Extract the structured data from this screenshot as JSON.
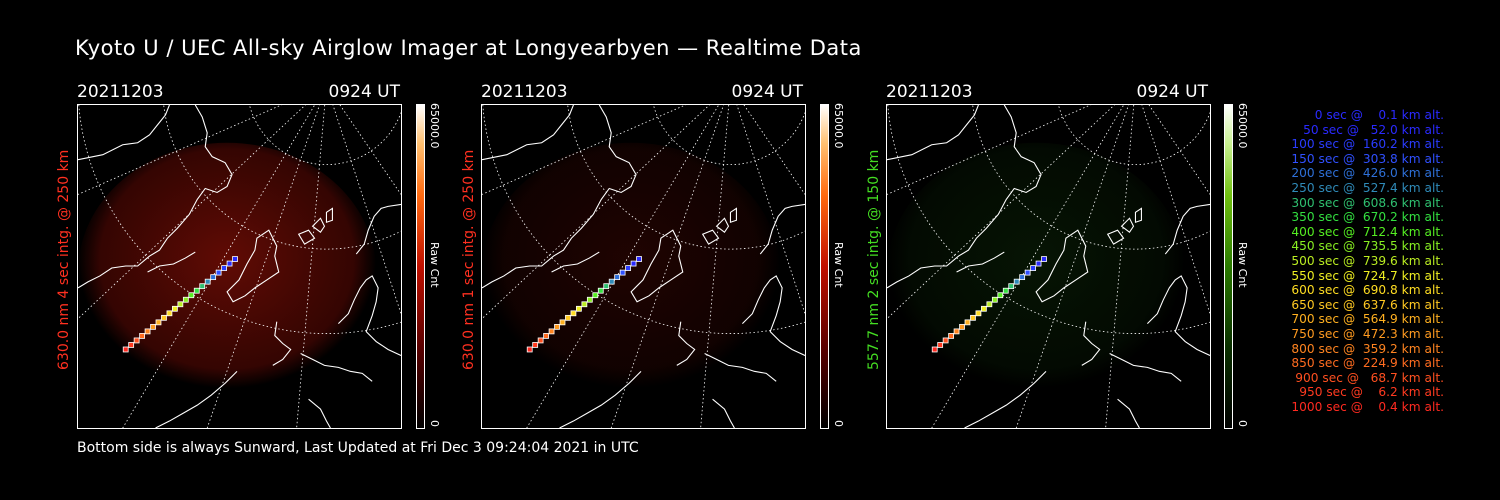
{
  "title": "Kyoto U / UEC All-sky Airglow Imager at Longyearbyen — Realtime Data",
  "footer": "Bottom side is always Sunward, Last Updated at Fri Dec  3 09:24:04 2021 in UTC",
  "colors": {
    "red_emission": "#ff2a10",
    "green_emission": "#44dd22"
  },
  "chart_data": [
    {
      "type": "heatmap",
      "date": "20211203",
      "time": "0924 UT",
      "side_label": "630.0 nm 4 sec intg. @ 250 km",
      "colorbar_max": "65000.0",
      "colorbar_label": "Raw Cnt",
      "colorbar_min": "0",
      "colormap": "black-red-orange-white",
      "airglow_intensity": 0.55
    },
    {
      "type": "heatmap",
      "date": "20211203",
      "time": "0924 UT",
      "side_label": "630.0 nm 1 sec intg. @ 250 km",
      "colorbar_max": "65000.0",
      "colorbar_label": "Raw Cnt",
      "colorbar_min": "0",
      "colormap": "black-red-orange-white",
      "airglow_intensity": 0.18
    },
    {
      "type": "heatmap",
      "date": "20211203",
      "time": "0924 UT",
      "side_label": "557.7 nm 2 sec intg. @ 150 km",
      "colorbar_max": "65000.0",
      "colorbar_label": "Raw Cnt",
      "colorbar_min": "0",
      "colormap": "black-green-white",
      "airglow_intensity": 0.15
    }
  ],
  "trajectory_legend": [
    {
      "text": "0 sec @    0.1 km alt.",
      "color": "#2a2aff"
    },
    {
      "text": "50 sec @   52.0 km alt.",
      "color": "#2a2aff"
    },
    {
      "text": "100 sec @  160.2 km alt.",
      "color": "#2a3cff"
    },
    {
      "text": "150 sec @  303.8 km alt.",
      "color": "#3050ff"
    },
    {
      "text": "200 sec @  426.0 km alt.",
      "color": "#2e70d8"
    },
    {
      "text": "250 sec @  527.4 km alt.",
      "color": "#2f8ab8"
    },
    {
      "text": "300 sec @  608.6 km alt.",
      "color": "#2fc070"
    },
    {
      "text": "350 sec @  670.2 km alt.",
      "color": "#33e040"
    },
    {
      "text": "400 sec @  712.4 km alt.",
      "color": "#55ee22"
    },
    {
      "text": "450 sec @  735.5 km alt.",
      "color": "#88ee22"
    },
    {
      "text": "500 sec @  739.6 km alt.",
      "color": "#bbee22"
    },
    {
      "text": "550 sec @  724.7 km alt.",
      "color": "#eeee22"
    },
    {
      "text": "600 sec @  690.8 km alt.",
      "color": "#ffdd22"
    },
    {
      "text": "650 sec @  637.6 km alt.",
      "color": "#ffc822"
    },
    {
      "text": "700 sec @  564.9 km alt.",
      "color": "#ffb020"
    },
    {
      "text": "750 sec @  472.3 km alt.",
      "color": "#ff9a20"
    },
    {
      "text": "800 sec @  359.2 km alt.",
      "color": "#ff8420"
    },
    {
      "text": "850 sec @  224.9 km alt.",
      "color": "#ff6c20"
    },
    {
      "text": "900 sec @   68.7 km alt.",
      "color": "#ff5020"
    },
    {
      "text": "950 sec @    6.2 km alt.",
      "color": "#ff3a20"
    },
    {
      "text": "1000 sec @    0.4 km alt.",
      "color": "#ff2a20"
    }
  ]
}
